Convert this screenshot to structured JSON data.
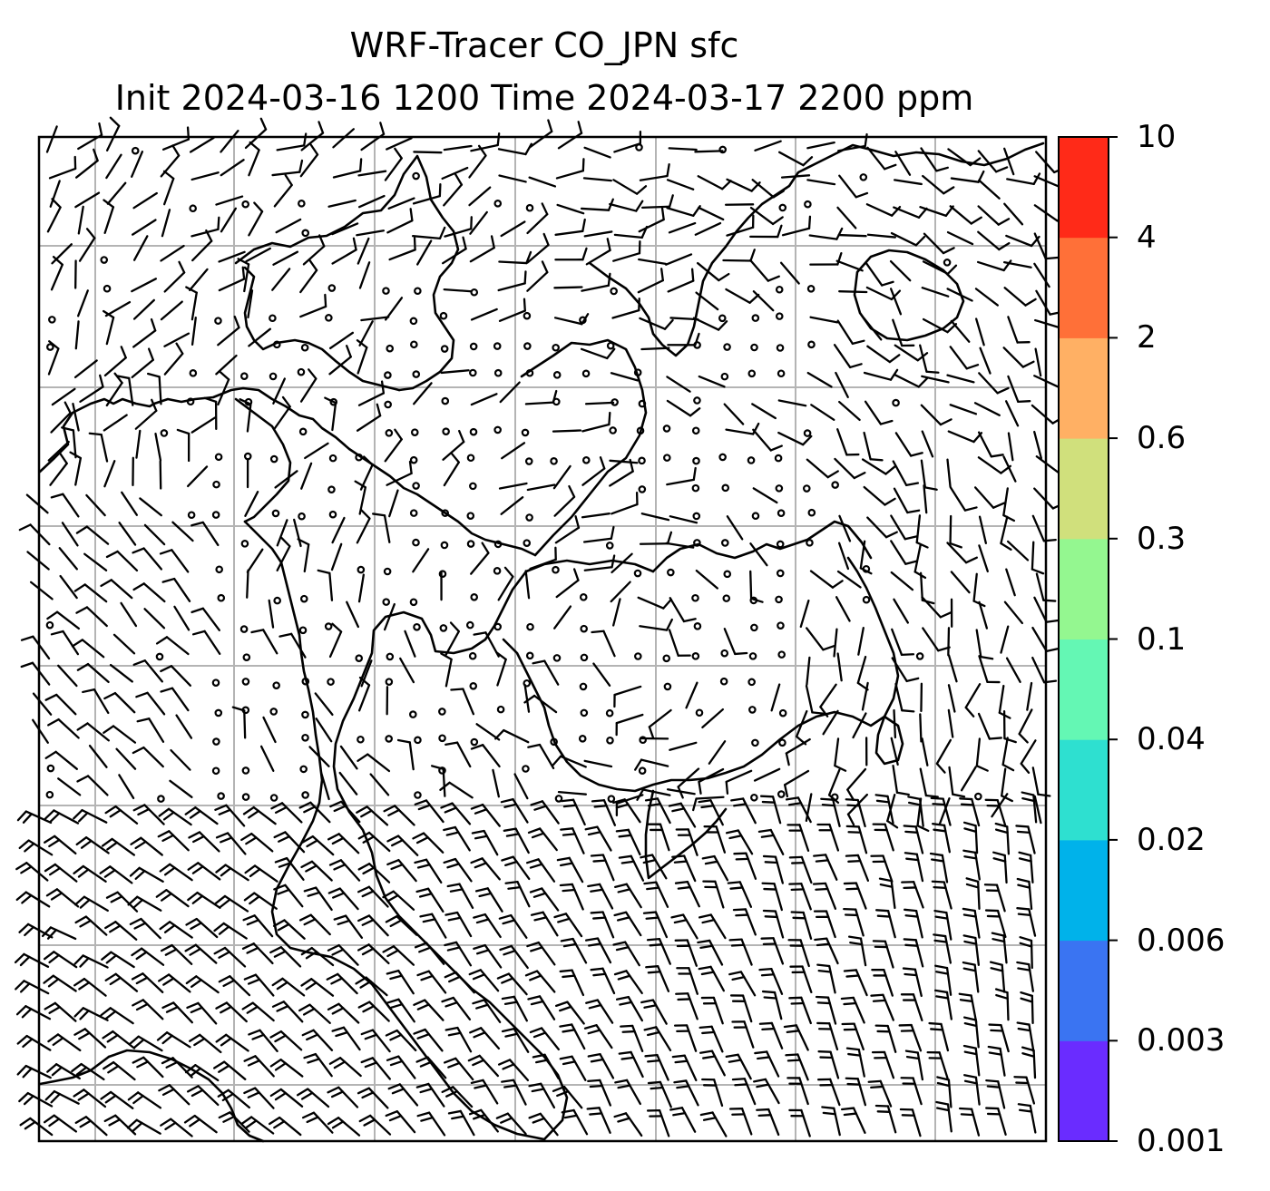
{
  "title": {
    "line1": "WRF-Tracer CO_JPN sfc",
    "line2": "Init 2024-03-16 1200 Time 2024-03-17 2200 ppm"
  },
  "colorbar": {
    "levels": [
      "0.001",
      "0.003",
      "0.006",
      "0.02",
      "0.04",
      "0.1",
      "0.3",
      "0.6",
      "2",
      "4",
      "10"
    ],
    "colors": [
      "#6a2cff",
      "#3a74f2",
      "#00b2ea",
      "#2ee0d0",
      "#64f7b4",
      "#94f790",
      "#d0e07c",
      "#ffb064",
      "#ff7038",
      "#ff2a18"
    ]
  },
  "map": {
    "gridlines": true,
    "wind_barbs": true,
    "coastlines": true,
    "line_color": "#000000",
    "grid_color": "#b4b4b4"
  }
}
